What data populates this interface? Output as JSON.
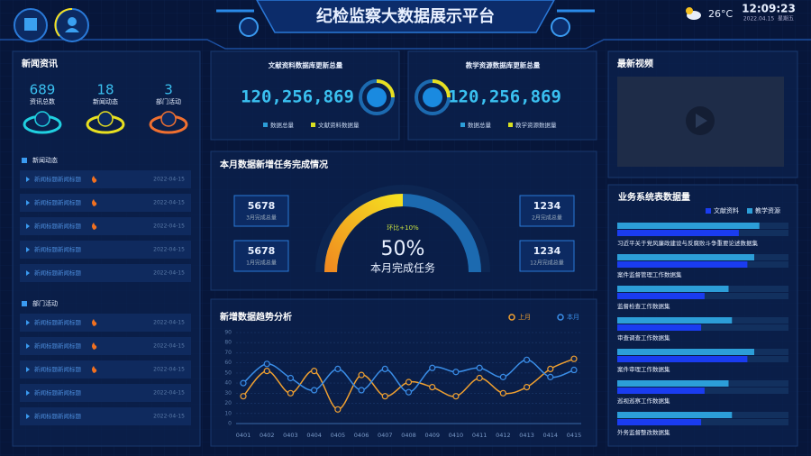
{
  "header": {
    "title": "纪检监察大数据展示平台",
    "weather": "26°C",
    "time": "12:09:23",
    "date": "2022.04.15",
    "weekday": "星期五"
  },
  "news": {
    "title": "新闻资讯",
    "stats": [
      {
        "value": 689,
        "label": "资讯总数"
      },
      {
        "value": 18,
        "label": "新闻动态"
      },
      {
        "value": 3,
        "label": "部门活动"
      }
    ],
    "lists": [
      {
        "title": "新闻动态",
        "items": [
          {
            "text": "新闻标题新闻标题",
            "date": "2022-04-15",
            "hot": true
          },
          {
            "text": "新闻标题新闻标题",
            "date": "2022-04-15",
            "hot": true
          },
          {
            "text": "新闻标题新闻标题",
            "date": "2022-04-15",
            "hot": true
          },
          {
            "text": "新闻标题新闻标题",
            "date": "2022-04-15",
            "hot": false
          },
          {
            "text": "新闻标题新闻标题",
            "date": "2022-04-15",
            "hot": false
          }
        ]
      },
      {
        "title": "部门活动",
        "items": [
          {
            "text": "新闻标题新闻标题",
            "date": "2022-04-15",
            "hot": true
          },
          {
            "text": "新闻标题新闻标题",
            "date": "2022-04-15",
            "hot": true
          },
          {
            "text": "新闻标题新闻标题",
            "date": "2022-04-15",
            "hot": true
          },
          {
            "text": "新闻标题新闻标题",
            "date": "2022-04-15",
            "hot": false
          },
          {
            "text": "新闻标题新闻标题",
            "date": "2022-04-15",
            "hot": false
          }
        ]
      }
    ]
  },
  "cards": [
    {
      "title": "文献资料数据库更新总量",
      "value": "120,256,869",
      "legend": [
        "数据总量",
        "文献资料数据量"
      ]
    },
    {
      "title": "教学资源数据库更新总量",
      "value": "120,256,869",
      "legend": [
        "数据总量",
        "教学资源数据量"
      ]
    }
  ],
  "tasks": {
    "title": "本月数据新增任务完成情况",
    "boxes": [
      {
        "value": 5678,
        "label": "3月完成总量"
      },
      {
        "value": 1234,
        "label": "2月完成总量"
      },
      {
        "value": 5678,
        "label": "1月完成总量"
      },
      {
        "value": 1234,
        "label": "12月完成总量"
      }
    ],
    "gauge": {
      "value": 50,
      "value_label": "50%",
      "caption": "本月完成任务",
      "change": "环比+10%"
    }
  },
  "video": {
    "title": "最新视频"
  },
  "chart_data": [
    {
      "type": "line",
      "title": "新增数据趋势分析",
      "categories": [
        "0401",
        "0402",
        "0403",
        "0404",
        "0405",
        "0406",
        "0407",
        "0408",
        "0409",
        "0410",
        "0411",
        "0412",
        "0413",
        "0414",
        "0415"
      ],
      "series": [
        {
          "name": "上月",
          "color": "#f0a030",
          "values": [
            27,
            52,
            30,
            52,
            14,
            48,
            27,
            41,
            36,
            27,
            45,
            30,
            36,
            54,
            64
          ]
        },
        {
          "name": "本月",
          "color": "#3a8ee8",
          "values": [
            40,
            59,
            45,
            33,
            54,
            33,
            54,
            31,
            55,
            51,
            55,
            46,
            63,
            46,
            53
          ]
        }
      ],
      "ylim": [
        0,
        90
      ],
      "yticks": [
        0,
        10,
        20,
        30,
        40,
        50,
        60,
        70,
        80,
        90
      ],
      "grid": true,
      "legend": "top-right"
    },
    {
      "type": "hbar",
      "title": "业务系统表数据量",
      "categories": [
        "习近平关于党风廉政建设与反腐败斗争重要论述数据集",
        "案件监督管理工作数据集",
        "监督检查工作数据集",
        "审查调查工作数据集",
        "案件审理工作数据集",
        "巡视巡察工作数据集",
        "外务监督整改数据集"
      ],
      "series": [
        {
          "name": "文献资料",
          "color": "#1a3cf0",
          "values": [
            71,
            76,
            51,
            49,
            76,
            51,
            49
          ]
        },
        {
          "name": "教学资源",
          "color": "#2c9ed8",
          "values": [
            83,
            80,
            65,
            67,
            80,
            65,
            67
          ]
        }
      ],
      "xlim": [
        0,
        100
      ],
      "legend": "top-right"
    }
  ]
}
